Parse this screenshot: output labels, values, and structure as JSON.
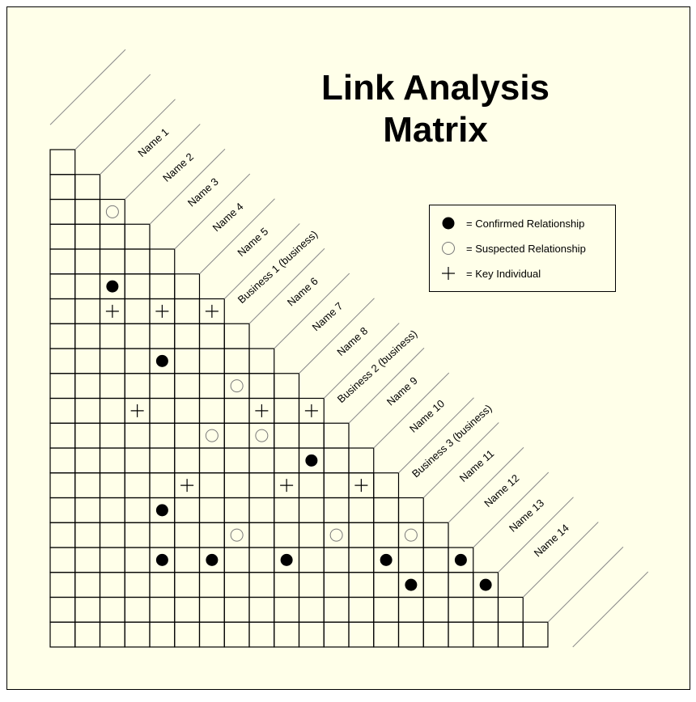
{
  "title": {
    "line1": "Link Analysis",
    "line2": "Matrix"
  },
  "colors": {
    "background": "#ffffe9",
    "grid": "#000000",
    "guide_lines": "#8a8a8a",
    "open_circle": "#777777"
  },
  "entities": [
    "Name 1",
    "Name 2",
    "Name 3",
    "Name 4",
    "Name 5",
    "Business 1 (business)",
    "Name 6",
    "Name 7",
    "Name 8",
    "Business 2 (business)",
    "Name 9",
    "Name 10",
    "Business 3 (business)",
    "Name 11",
    "Name 12",
    "Name 13",
    "Name 14"
  ],
  "legend": {
    "items": [
      {
        "symbol": "filled-circle",
        "label": "= Confirmed Relationship"
      },
      {
        "symbol": "open-circle",
        "label": "= Suspected Relationship"
      },
      {
        "symbol": "plus",
        "label": "= Key Individual"
      }
    ]
  },
  "matrix": {
    "marks": [
      {
        "col": 2,
        "row": 2,
        "type": "open-circle"
      },
      {
        "col": 2,
        "row": 5,
        "type": "filled-circle"
      },
      {
        "col": 2,
        "row": 6,
        "type": "plus"
      },
      {
        "col": 4,
        "row": 6,
        "type": "plus"
      },
      {
        "col": 6,
        "row": 6,
        "type": "plus"
      },
      {
        "col": 4,
        "row": 8,
        "type": "filled-circle"
      },
      {
        "col": 7,
        "row": 9,
        "type": "open-circle"
      },
      {
        "col": 3,
        "row": 10,
        "type": "plus"
      },
      {
        "col": 8,
        "row": 10,
        "type": "plus"
      },
      {
        "col": 10,
        "row": 10,
        "type": "plus"
      },
      {
        "col": 6,
        "row": 11,
        "type": "open-circle"
      },
      {
        "col": 8,
        "row": 11,
        "type": "open-circle"
      },
      {
        "col": 10,
        "row": 12,
        "type": "filled-circle"
      },
      {
        "col": 5,
        "row": 13,
        "type": "plus"
      },
      {
        "col": 9,
        "row": 13,
        "type": "plus"
      },
      {
        "col": 12,
        "row": 13,
        "type": "plus"
      },
      {
        "col": 4,
        "row": 14,
        "type": "filled-circle"
      },
      {
        "col": 7,
        "row": 15,
        "type": "open-circle"
      },
      {
        "col": 11,
        "row": 15,
        "type": "open-circle"
      },
      {
        "col": 14,
        "row": 15,
        "type": "open-circle"
      },
      {
        "col": 4,
        "row": 16,
        "type": "filled-circle"
      },
      {
        "col": 6,
        "row": 16,
        "type": "filled-circle"
      },
      {
        "col": 9,
        "row": 16,
        "type": "filled-circle"
      },
      {
        "col": 13,
        "row": 16,
        "type": "filled-circle"
      },
      {
        "col": 16,
        "row": 16,
        "type": "filled-circle"
      },
      {
        "col": 14,
        "row": 17,
        "type": "filled-circle"
      },
      {
        "col": 17,
        "row": 17,
        "type": "filled-circle"
      }
    ]
  }
}
